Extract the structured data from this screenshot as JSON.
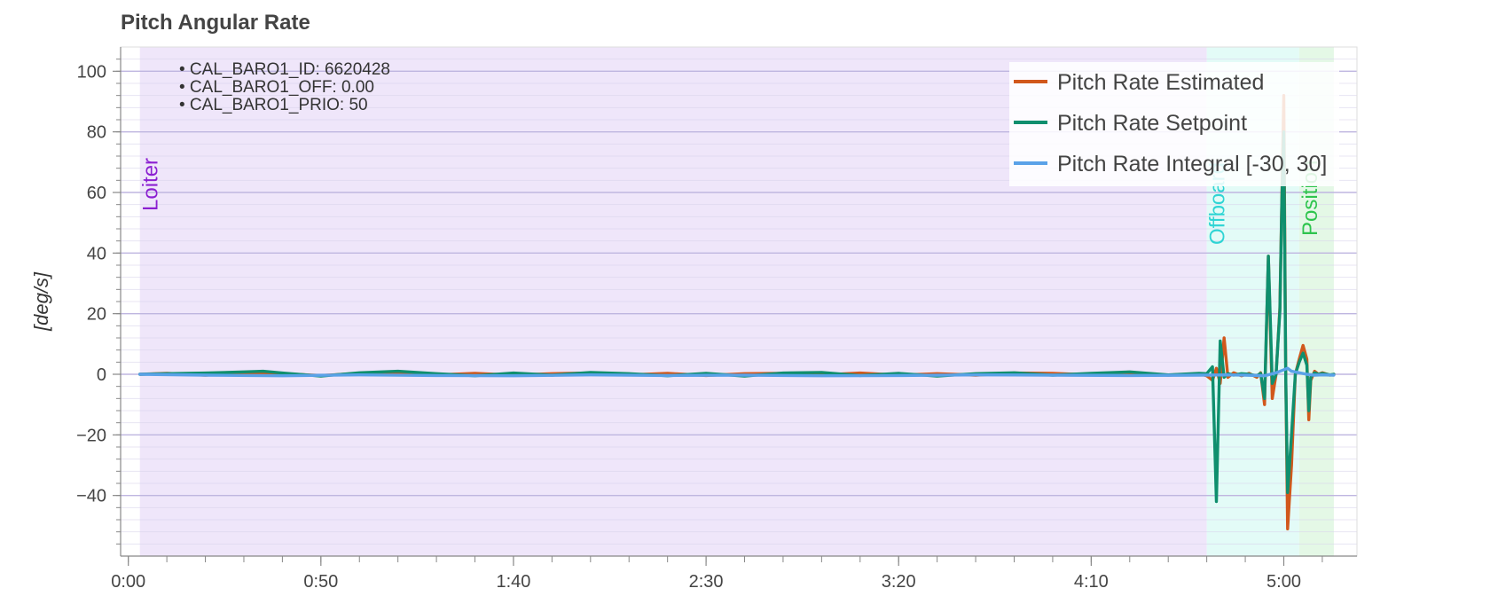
{
  "chart_data": {
    "type": "line",
    "title": "Pitch Angular Rate",
    "xlabel": "",
    "ylabel": "[deg/s]",
    "xlim": [
      -2,
      319
    ],
    "ylim": [
      -60,
      108
    ],
    "x_ticks": [
      {
        "value": 0,
        "label": "0:00"
      },
      {
        "value": 50,
        "label": "0:50"
      },
      {
        "value": 100,
        "label": "1:40"
      },
      {
        "value": 150,
        "label": "2:30"
      },
      {
        "value": 200,
        "label": "3:20"
      },
      {
        "value": 250,
        "label": "4:10"
      },
      {
        "value": 300,
        "label": "5:00"
      }
    ],
    "y_ticks": [
      {
        "value": 100,
        "label": "100"
      },
      {
        "value": 80,
        "label": "80"
      },
      {
        "value": 60,
        "label": "60"
      },
      {
        "value": 40,
        "label": "40"
      },
      {
        "value": 20,
        "label": "20"
      },
      {
        "value": 0,
        "label": "0"
      },
      {
        "value": -20,
        "label": "−20"
      },
      {
        "value": -40,
        "label": "−40"
      }
    ],
    "grid": true,
    "legend_position": "top-right",
    "modes": [
      {
        "label": "Loiter",
        "start": 3,
        "end": 280,
        "fill": "#efe6fa",
        "text_color": "#8b1fd1"
      },
      {
        "label": "Offboard",
        "start": 280,
        "end": 304,
        "fill": "#e3fbf7",
        "text_color": "#2fd4d4"
      },
      {
        "label": "Position",
        "start": 304,
        "end": 313,
        "fill": "#e4f8e6",
        "text_color": "#2ec44d"
      }
    ],
    "annotations": [
      "• CAL_BARO1_ID: 6620428",
      "• CAL_BARO1_OFF: 0.00",
      "• CAL_BARO1_PRIO: 50"
    ],
    "series": [
      {
        "name": "Pitch Rate Estimated",
        "color": "#d1581c",
        "x": [
          3,
          10,
          20,
          30,
          40,
          50,
          60,
          70,
          80,
          90,
          100,
          110,
          120,
          130,
          140,
          150,
          160,
          170,
          180,
          190,
          200,
          210,
          220,
          230,
          240,
          250,
          260,
          270,
          278,
          280,
          281.5,
          282.5,
          283.5,
          284.5,
          285.5,
          287,
          289,
          291,
          293,
          294,
          295,
          296,
          297,
          298,
          299,
          299.5,
          300,
          300.5,
          301,
          302,
          303,
          304,
          305,
          306,
          306.5,
          307,
          308,
          309,
          310,
          312,
          313
        ],
        "y": [
          0,
          0.3,
          -0.3,
          0.5,
          0.2,
          -0.4,
          0.3,
          0.5,
          -0.2,
          0.3,
          -0.3,
          0.2,
          0.4,
          -0.2,
          0.3,
          -0.4,
          0.2,
          0.3,
          -0.2,
          0.4,
          -0.3,
          0.2,
          -0.3,
          0.4,
          0.3,
          -0.2,
          0.4,
          -0.3,
          0.2,
          -0.5,
          -2,
          2,
          -3,
          12,
          -1,
          0.5,
          -0.5,
          0.3,
          -1,
          0.5,
          -10,
          39,
          -8,
          0,
          22,
          58,
          92,
          0,
          -51,
          -30,
          0,
          5,
          9.5,
          5,
          -15,
          -2,
          1,
          0,
          0.5,
          -0.3,
          0
        ]
      },
      {
        "name": "Pitch Rate Setpoint",
        "color": "#0f8f6e",
        "x": [
          3,
          10,
          20,
          30,
          35,
          40,
          50,
          60,
          70,
          80,
          90,
          100,
          110,
          120,
          130,
          140,
          150,
          160,
          170,
          180,
          190,
          200,
          210,
          220,
          230,
          240,
          250,
          260,
          270,
          278,
          280,
          281.5,
          282.5,
          283.5,
          284.5,
          285.5,
          287,
          289,
          291,
          293,
          294,
          295,
          296,
          297,
          298,
          299,
          299.5,
          300,
          300.5,
          301,
          302,
          303,
          304,
          305,
          306,
          306.5,
          307,
          308,
          309,
          310,
          312,
          313
        ],
        "y": [
          0,
          0.2,
          0.4,
          0.8,
          1,
          0.4,
          -0.6,
          0.5,
          1,
          0.2,
          -0.5,
          0.4,
          -0.3,
          0.6,
          0.2,
          -0.5,
          0.3,
          -0.6,
          0.4,
          0.6,
          -0.4,
          0.3,
          -0.6,
          0.2,
          0.5,
          -0.3,
          0.3,
          0.8,
          -0.2,
          0.3,
          0.2,
          2.5,
          -42,
          11,
          -1,
          0.2,
          -0.3,
          0.2,
          0,
          -0.5,
          0.3,
          -8,
          39,
          -3,
          0,
          21,
          57,
          80,
          -1,
          -39,
          -20,
          0,
          4,
          7,
          3,
          -12,
          -1,
          0.5,
          0,
          0.3,
          -0.2,
          0
        ]
      },
      {
        "name": "Pitch Rate Integral [-30, 30]",
        "color": "#5aa2e8",
        "x": [
          3,
          20,
          40,
          60,
          80,
          100,
          120,
          140,
          160,
          180,
          200,
          220,
          240,
          260,
          278,
          285,
          290,
          295,
          298,
          300,
          301,
          302,
          304,
          306,
          308,
          310,
          313
        ],
        "y": [
          0,
          -0.3,
          -0.5,
          -0.2,
          -0.4,
          -0.5,
          -0.2,
          -0.4,
          -0.3,
          -0.5,
          -0.4,
          -0.2,
          -0.3,
          -0.4,
          -0.3,
          -0.2,
          -0.3,
          -0.5,
          0.5,
          1.5,
          2,
          1,
          0.5,
          0,
          -0.3,
          -0.2,
          -0.3
        ]
      }
    ]
  }
}
